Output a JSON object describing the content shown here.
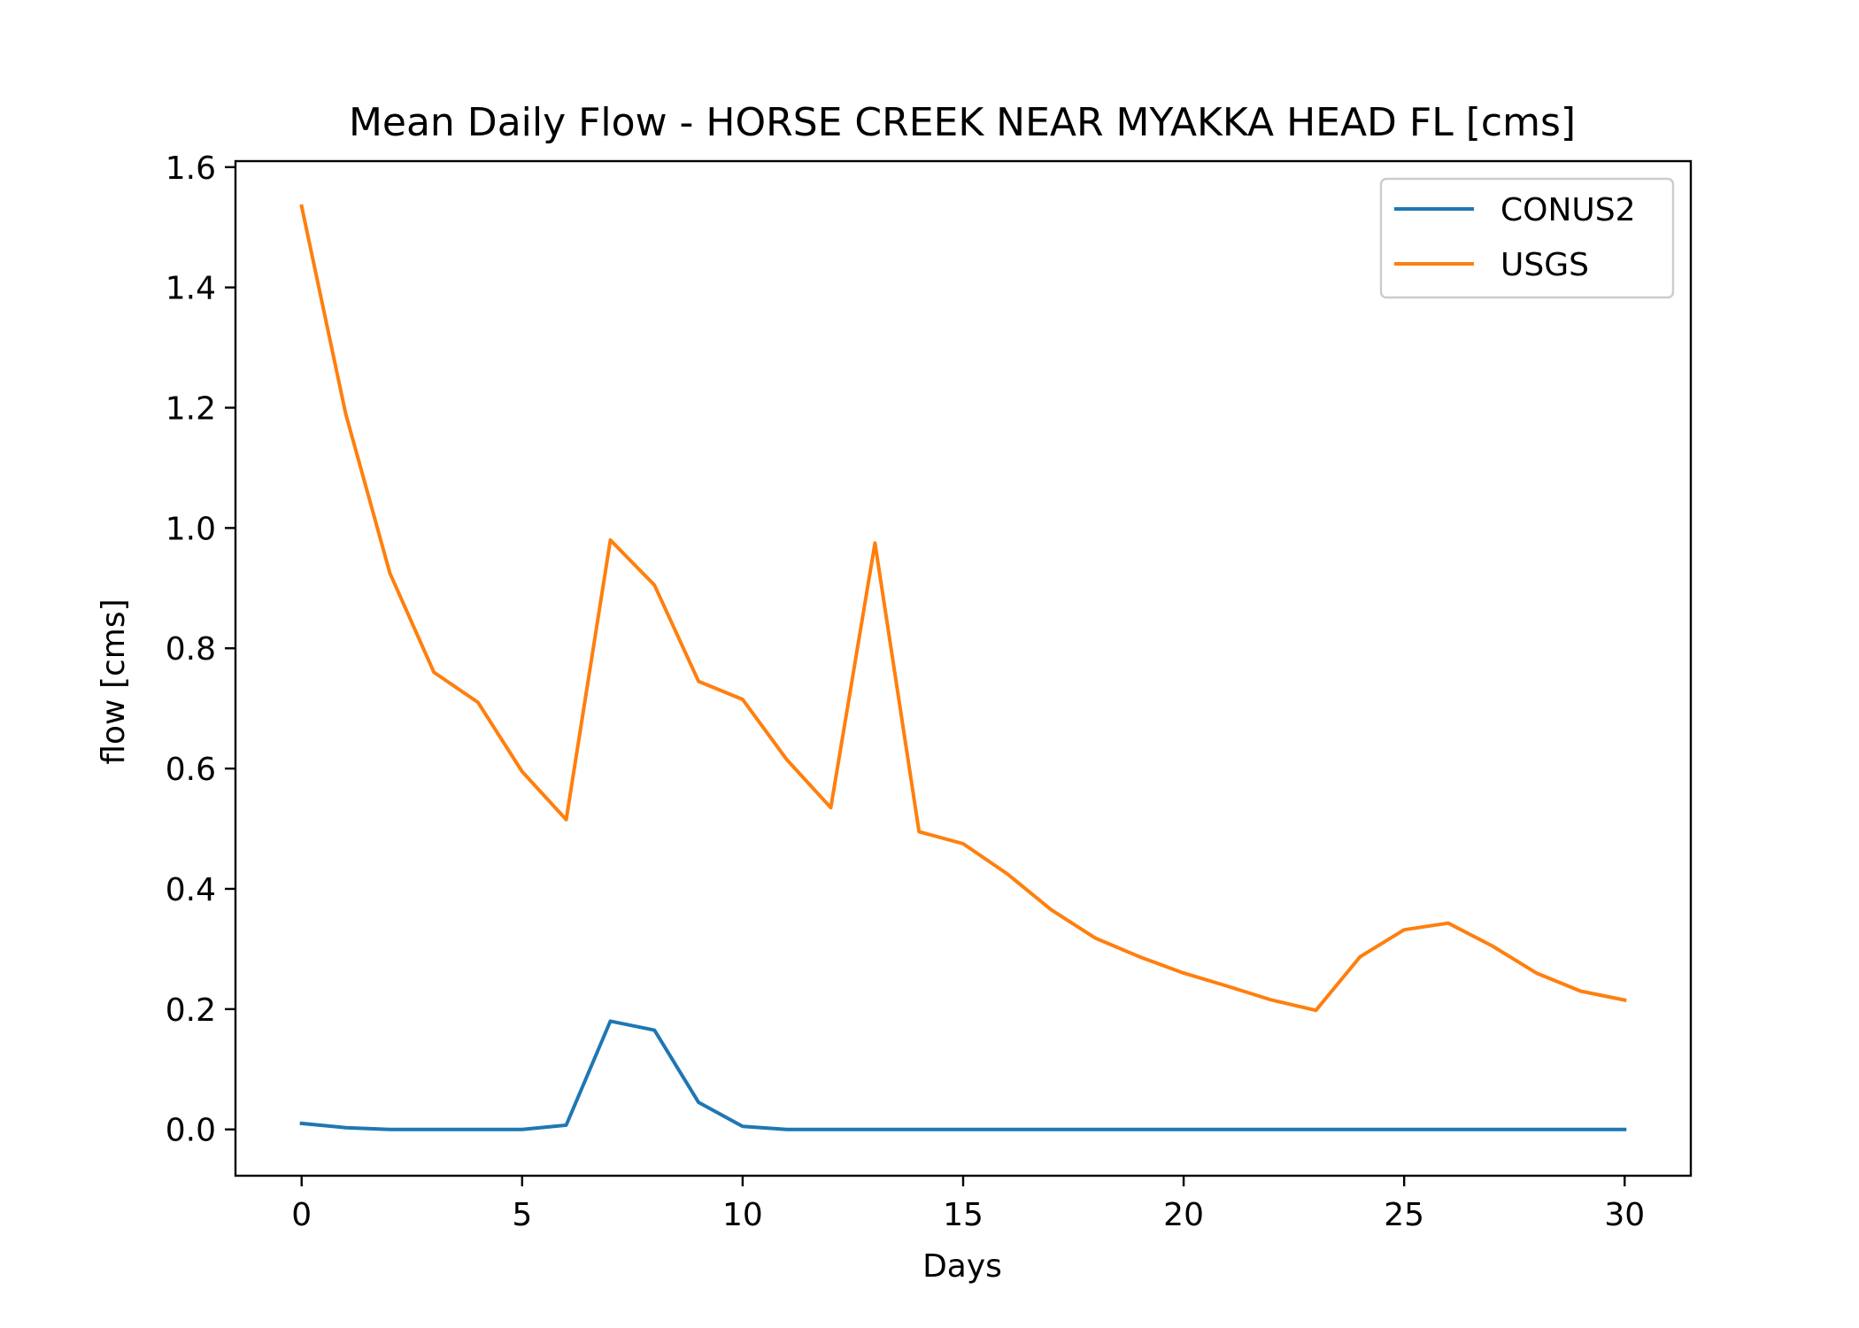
{
  "chart_data": {
    "type": "line",
    "title": "Mean Daily Flow - HORSE CREEK NEAR MYAKKA HEAD FL [cms]",
    "xlabel": "Days",
    "ylabel": "flow [cms]",
    "xlim": [
      -1.5,
      31.5
    ],
    "ylim": [
      -0.077,
      1.61
    ],
    "xticks": [
      0,
      5,
      10,
      15,
      20,
      25,
      30
    ],
    "yticks": [
      0.0,
      0.2,
      0.4,
      0.6,
      0.8,
      1.0,
      1.2,
      1.4,
      1.6
    ],
    "ytick_labels": [
      "0.0",
      "0.2",
      "0.4",
      "0.6",
      "0.8",
      "1.0",
      "1.2",
      "1.4",
      "1.6"
    ],
    "grid": false,
    "legend_position": "top-right",
    "series": [
      {
        "name": "CONUS2",
        "color": "#1f77b4",
        "x": [
          0,
          1,
          2,
          3,
          4,
          5,
          6,
          7,
          8,
          9,
          10,
          11,
          12,
          13,
          14,
          15,
          16,
          17,
          18,
          19,
          20,
          21,
          22,
          23,
          24,
          25,
          26,
          27,
          28,
          29,
          30
        ],
        "y": [
          0.01,
          0.003,
          0.0,
          0.0,
          0.0,
          0.0,
          0.007,
          0.18,
          0.165,
          0.045,
          0.005,
          0.0,
          0.0,
          0.0,
          0.0,
          0.0,
          0.0,
          0.0,
          0.0,
          0.0,
          0.0,
          0.0,
          0.0,
          0.0,
          0.0,
          0.0,
          0.0,
          0.0,
          0.0,
          0.0,
          0.0
        ]
      },
      {
        "name": "USGS",
        "color": "#ff7f0e",
        "x": [
          0,
          1,
          2,
          3,
          4,
          5,
          6,
          7,
          8,
          9,
          10,
          11,
          12,
          13,
          14,
          15,
          16,
          17,
          18,
          19,
          20,
          21,
          22,
          23,
          24,
          25,
          26,
          27,
          28,
          29,
          30
        ],
        "y": [
          1.535,
          1.19,
          0.925,
          0.76,
          0.71,
          0.595,
          0.515,
          0.98,
          0.905,
          0.745,
          0.715,
          0.615,
          0.535,
          0.975,
          0.495,
          0.475,
          0.425,
          0.365,
          0.318,
          0.287,
          0.26,
          0.238,
          0.215,
          0.198,
          0.287,
          0.332,
          0.343,
          0.305,
          0.26,
          0.23,
          0.215
        ]
      }
    ]
  }
}
